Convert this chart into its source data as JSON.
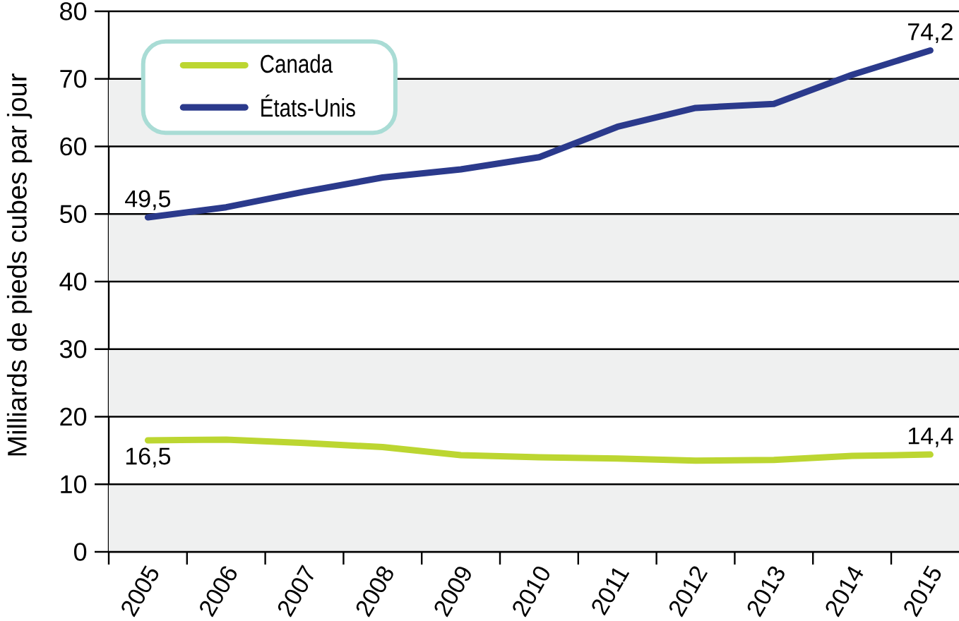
{
  "chart_data": {
    "type": "line",
    "ylabel": "Milliards de pieds cubes par jour",
    "categories": [
      "2005",
      "2006",
      "2007",
      "2008",
      "2009",
      "2010",
      "2011",
      "2012",
      "2013",
      "2014",
      "2015"
    ],
    "series": [
      {
        "name": "Canada",
        "color": "#bcd631",
        "values": [
          16.5,
          16.6,
          16.1,
          15.5,
          14.3,
          14.0,
          13.8,
          13.5,
          13.6,
          14.2,
          14.4
        ],
        "value_labels": [
          "16,5",
          null,
          null,
          null,
          null,
          null,
          null,
          null,
          null,
          null,
          "14,4"
        ]
      },
      {
        "name": "États-Unis",
        "color": "#2b3a8c",
        "values": [
          49.5,
          51.0,
          53.3,
          55.4,
          56.6,
          58.4,
          62.9,
          65.7,
          66.3,
          70.6,
          74.2
        ],
        "value_labels": [
          "49,5",
          null,
          null,
          null,
          null,
          null,
          null,
          null,
          null,
          null,
          "74,2"
        ]
      }
    ],
    "ylim": [
      0,
      80
    ],
    "yticks": [
      0,
      10,
      20,
      30,
      40,
      50,
      60,
      70,
      80
    ],
    "grid": "y",
    "legend": "top left",
    "bands": [
      {
        "axis": "y",
        "from": 0,
        "to": 10,
        "color": "#eff0f0"
      },
      {
        "axis": "y",
        "from": 20,
        "to": 30,
        "color": "#eff0f0"
      },
      {
        "axis": "y",
        "from": 40,
        "to": 50,
        "color": "#eff0f0"
      },
      {
        "axis": "y",
        "from": 60,
        "to": 70,
        "color": "#eff0f0"
      }
    ]
  }
}
